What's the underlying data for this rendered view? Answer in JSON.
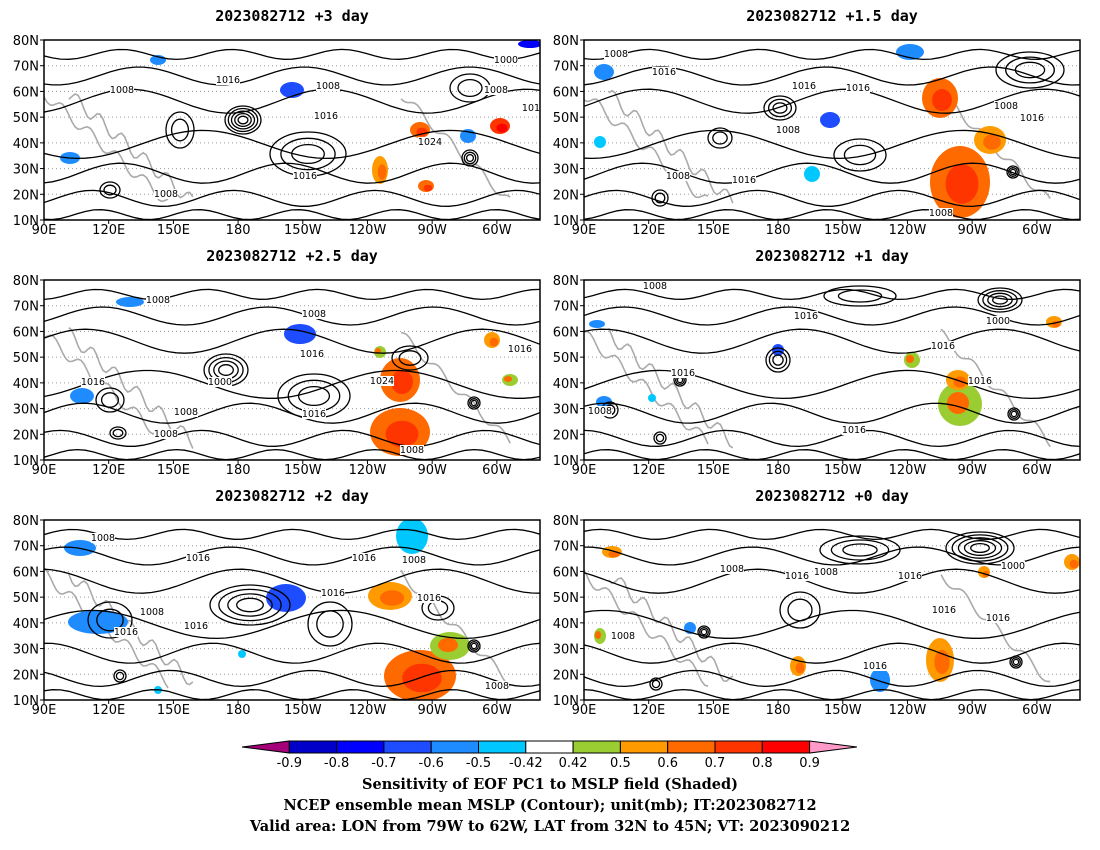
{
  "panels": [
    {
      "title": "2023082712  +3 day",
      "contour_labels": [
        "1008",
        "1016",
        "1008",
        "1016",
        "1024",
        "1016",
        "1000",
        "1008",
        "101",
        "1008"
      ]
    },
    {
      "title": "2023082712  +1.5 day",
      "contour_labels": [
        "1008",
        "1016",
        "1016",
        "1016",
        "1008",
        "1008",
        "1008",
        "1016",
        "1016",
        "1008"
      ]
    },
    {
      "title": "2023082712  +2.5 day",
      "contour_labels": [
        "1008",
        "1008",
        "1016",
        "1016",
        "1000",
        "1016",
        "1024",
        "1008",
        "1016",
        "1008",
        "1008"
      ]
    },
    {
      "title": "2023082712  +1 day",
      "contour_labels": [
        "1008",
        "1016",
        "1000",
        "1016",
        "1016",
        "1016",
        "1008",
        "1016"
      ]
    },
    {
      "title": "2023082712  +2 day",
      "contour_labels": [
        "1008",
        "1016",
        "1016",
        "1008",
        "1016",
        "1016",
        "1008",
        "1016",
        "1016",
        "1008"
      ]
    },
    {
      "title": "2023082712  +0 day",
      "contour_labels": [
        "1008",
        "1016",
        "1008",
        "1016",
        "1000",
        "1016",
        "1016",
        "1008",
        "1016"
      ]
    }
  ],
  "axes": {
    "lat_ticks": [
      "10N",
      "20N",
      "30N",
      "40N",
      "50N",
      "60N",
      "70N",
      "80N"
    ],
    "lon_ticks": [
      "90E",
      "120E",
      "150E",
      "180",
      "150W",
      "120W",
      "90W",
      "60W"
    ],
    "lon_range": [
      90,
      320
    ],
    "lat_range": [
      10,
      80
    ]
  },
  "colorbar": {
    "ticks": [
      "-0.9",
      "-0.8",
      "-0.7",
      "-0.6",
      "-0.5",
      "-0.42",
      "0.42",
      "0.5",
      "0.6",
      "0.7",
      "0.8",
      "0.9"
    ],
    "colors": [
      "#a3007a",
      "#0000c8",
      "#0000ff",
      "#1e4cff",
      "#1e8cff",
      "#00c8ff",
      "#ffffff",
      "#9acd32",
      "#ff9a00",
      "#ff6a00",
      "#ff3500",
      "#ff0000",
      "#ff9ac8"
    ]
  },
  "captions": {
    "line1": "Sensitivity of EOF PC1 to MSLP field (Shaded)",
    "line2": "NCEP ensemble mean MSLP (Contour); unit(mb); IT:2023082712",
    "line3": "Valid area: LON from 79W to 62W, LAT from 32N to 45N; VT: 2023090212"
  }
}
